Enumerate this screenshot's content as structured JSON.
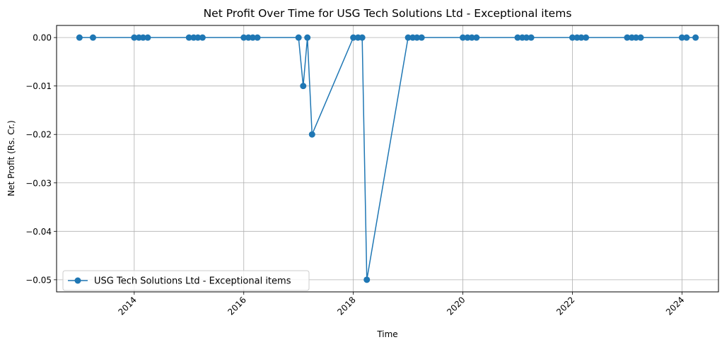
{
  "chart_data": {
    "type": "line",
    "title": "Net Profit Over Time for USG Tech Solutions Ltd - Exceptional items",
    "xlabel": "Time",
    "ylabel": "Net Profit (Rs. Cr.)",
    "xlim": [
      "2012-08-01",
      "2024-09-01"
    ],
    "ylim": [
      -0.0525,
      0.0025
    ],
    "xticks": [
      "2014",
      "2016",
      "2018",
      "2020",
      "2022",
      "2024"
    ],
    "yticks": [
      "0.00",
      "−0.01",
      "−0.02",
      "−0.03",
      "−0.04",
      "−0.05"
    ],
    "grid": true,
    "legend_position": "lower-left",
    "series": [
      {
        "name": "USG Tech Solutions Ltd - Exceptional items",
        "color": "#1f77b4",
        "marker": "circle",
        "points": [
          {
            "x": "2013-01-01",
            "y": 0.0
          },
          {
            "x": "2013-04-01",
            "y": 0.0
          },
          {
            "x": "2014-01-01",
            "y": 0.0
          },
          {
            "x": "2014-02-01",
            "y": 0.0
          },
          {
            "x": "2014-03-01",
            "y": 0.0
          },
          {
            "x": "2014-04-01",
            "y": 0.0
          },
          {
            "x": "2015-01-01",
            "y": 0.0
          },
          {
            "x": "2015-02-01",
            "y": 0.0
          },
          {
            "x": "2015-03-01",
            "y": 0.0
          },
          {
            "x": "2015-04-01",
            "y": 0.0
          },
          {
            "x": "2016-01-01",
            "y": 0.0
          },
          {
            "x": "2016-02-01",
            "y": 0.0
          },
          {
            "x": "2016-03-01",
            "y": 0.0
          },
          {
            "x": "2016-04-01",
            "y": 0.0
          },
          {
            "x": "2017-01-01",
            "y": 0.0
          },
          {
            "x": "2017-02-01",
            "y": -0.01
          },
          {
            "x": "2017-03-01",
            "y": 0.0
          },
          {
            "x": "2017-04-01",
            "y": -0.02
          },
          {
            "x": "2018-01-01",
            "y": 0.0
          },
          {
            "x": "2018-02-01",
            "y": 0.0
          },
          {
            "x": "2018-03-01",
            "y": 0.0
          },
          {
            "x": "2018-04-01",
            "y": -0.05
          },
          {
            "x": "2019-01-01",
            "y": 0.0
          },
          {
            "x": "2019-02-01",
            "y": 0.0
          },
          {
            "x": "2019-03-01",
            "y": 0.0
          },
          {
            "x": "2019-04-01",
            "y": 0.0
          },
          {
            "x": "2020-01-01",
            "y": 0.0
          },
          {
            "x": "2020-02-01",
            "y": 0.0
          },
          {
            "x": "2020-03-01",
            "y": 0.0
          },
          {
            "x": "2020-04-01",
            "y": 0.0
          },
          {
            "x": "2021-01-01",
            "y": 0.0
          },
          {
            "x": "2021-02-01",
            "y": 0.0
          },
          {
            "x": "2021-03-01",
            "y": 0.0
          },
          {
            "x": "2021-04-01",
            "y": 0.0
          },
          {
            "x": "2022-01-01",
            "y": 0.0
          },
          {
            "x": "2022-02-01",
            "y": 0.0
          },
          {
            "x": "2022-03-01",
            "y": 0.0
          },
          {
            "x": "2022-04-01",
            "y": 0.0
          },
          {
            "x": "2023-01-01",
            "y": 0.0
          },
          {
            "x": "2023-02-01",
            "y": 0.0
          },
          {
            "x": "2023-03-01",
            "y": 0.0
          },
          {
            "x": "2023-04-01",
            "y": 0.0
          },
          {
            "x": "2024-01-01",
            "y": 0.0
          },
          {
            "x": "2024-02-01",
            "y": 0.0
          },
          {
            "x": "2024-04-01",
            "y": 0.0
          }
        ]
      }
    ]
  }
}
